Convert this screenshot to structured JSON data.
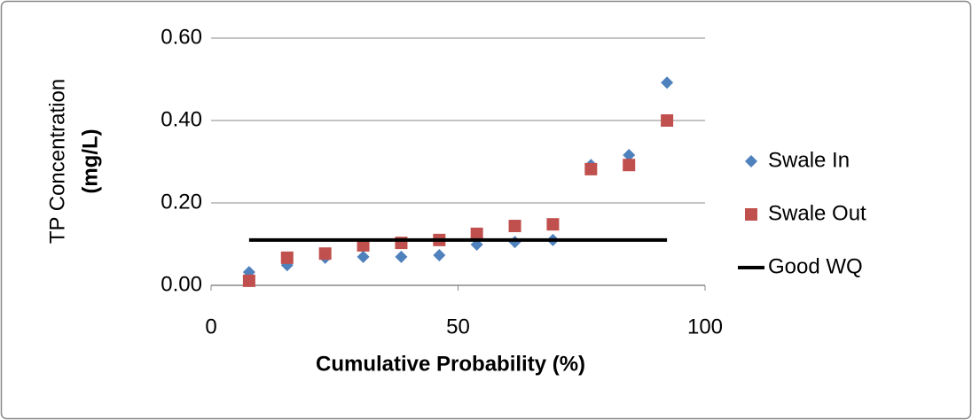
{
  "chart_data": {
    "type": "scatter",
    "ylabel": "TP Concentration",
    "ylabel_unit": "(mg/L)",
    "xlabel": "Cumulative Probability (%)",
    "xlim": [
      0,
      100
    ],
    "xticks": [
      0,
      50,
      100
    ],
    "ylim": [
      0,
      0.6
    ],
    "yticks": [
      {
        "value": 0,
        "label": "0.00"
      },
      {
        "value": 0.2,
        "label": "0.20"
      },
      {
        "value": 0.4,
        "label": "0.40"
      },
      {
        "value": 0.6,
        "label": "0.60"
      }
    ],
    "grid": true,
    "legend": "right",
    "series": [
      {
        "name": "Swale In",
        "color": "#4f81bd",
        "marker": "diamond",
        "x": [
          7.7,
          15.4,
          23.1,
          30.8,
          38.5,
          46.2,
          53.8,
          61.5,
          69.2,
          76.9,
          84.6,
          92.3
        ],
        "values": [
          0.032,
          0.049,
          0.067,
          0.069,
          0.069,
          0.073,
          0.099,
          0.105,
          0.11,
          0.292,
          0.316,
          0.492
        ]
      },
      {
        "name": "Swale Out",
        "color": "#c0504d",
        "marker": "square",
        "x": [
          7.7,
          15.4,
          23.1,
          30.8,
          38.5,
          46.2,
          53.8,
          61.5,
          69.2,
          76.9,
          84.6,
          92.3
        ],
        "values": [
          0.011,
          0.067,
          0.077,
          0.097,
          0.103,
          0.11,
          0.125,
          0.144,
          0.148,
          0.282,
          0.292,
          0.4
        ]
      },
      {
        "name": "Good WQ",
        "color": "#000000",
        "marker": "line",
        "x": [
          7.7,
          92.3
        ],
        "values": [
          0.11,
          0.11
        ]
      }
    ]
  }
}
